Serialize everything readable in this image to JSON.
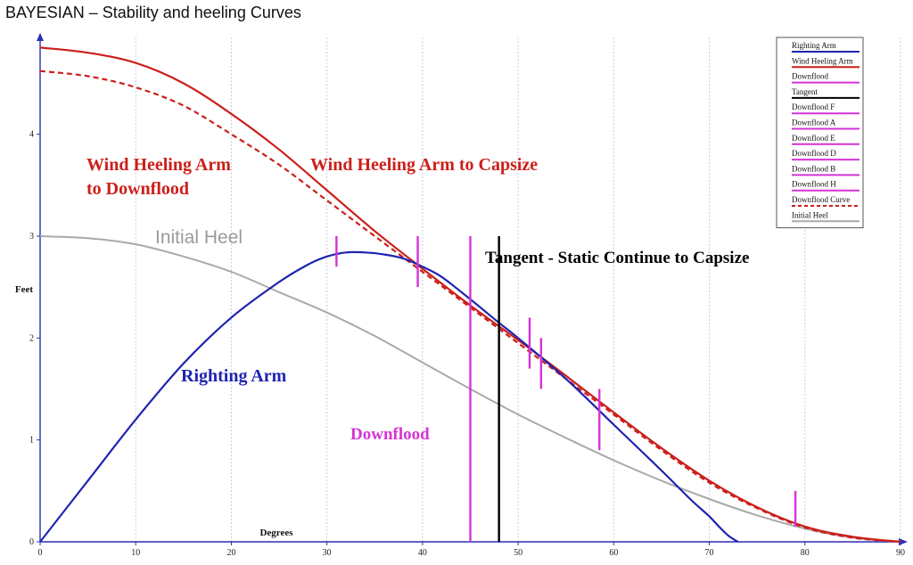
{
  "page": {
    "title": "BAYESIAN – Stability and heeling Curves"
  },
  "chart_data": {
    "type": "line",
    "title": "BAYESIAN – Stability and heeling Curves",
    "xlabel": "Degrees",
    "ylabel": "Feet",
    "xlim": [
      0,
      90
    ],
    "ylim": [
      0,
      5
    ],
    "x_ticks": [
      0,
      10,
      20,
      30,
      40,
      50,
      60,
      70,
      80,
      90
    ],
    "y_ticks": [
      0,
      1,
      2,
      3,
      4
    ],
    "grid": true,
    "legend_position": "top-right",
    "series": [
      {
        "name": "Righting Arm",
        "color": "#1f24b0",
        "style": "solid",
        "x": [
          0,
          5,
          10,
          15,
          20,
          25,
          28,
          30,
          32,
          34,
          36,
          38,
          40,
          42,
          45,
          48,
          50,
          55,
          60,
          65,
          68,
          70,
          71,
          72,
          73
        ],
        "y": [
          0,
          0.6,
          1.2,
          1.75,
          2.2,
          2.55,
          2.72,
          2.8,
          2.84,
          2.84,
          2.82,
          2.78,
          2.7,
          2.6,
          2.38,
          2.15,
          2.0,
          1.6,
          1.15,
          0.7,
          0.42,
          0.25,
          0.15,
          0.06,
          0
        ]
      },
      {
        "name": "Wind Heeling Arm",
        "color": "#cc1f1a",
        "style": "solid",
        "x": [
          0,
          5,
          10,
          15,
          20,
          25,
          30,
          35,
          40,
          45,
          50,
          55,
          60,
          65,
          70,
          75,
          80,
          85,
          90
        ],
        "y": [
          4.85,
          4.8,
          4.7,
          4.5,
          4.2,
          3.85,
          3.45,
          3.05,
          2.68,
          2.32,
          1.98,
          1.63,
          1.27,
          0.92,
          0.6,
          0.34,
          0.15,
          0.05,
          0
        ]
      },
      {
        "name": "Downflood Curve",
        "color": "#cc1f1a",
        "style": "dashed",
        "x": [
          0,
          5,
          10,
          15,
          20,
          25,
          30,
          35,
          40,
          45,
          50,
          55,
          60,
          65,
          70,
          75,
          80,
          85,
          90
        ],
        "y": [
          4.62,
          4.57,
          4.46,
          4.28,
          4.0,
          3.7,
          3.35,
          3.0,
          2.65,
          2.3,
          1.95,
          1.6,
          1.25,
          0.9,
          0.58,
          0.33,
          0.14,
          0.04,
          0
        ]
      },
      {
        "name": "Initial Heel",
        "color": "#a9a9a9",
        "style": "solid",
        "x": [
          0,
          5,
          10,
          15,
          20,
          25,
          30,
          35,
          40,
          45,
          50,
          55,
          60,
          65,
          70,
          75,
          80,
          85,
          90
        ],
        "y": [
          3.0,
          2.98,
          2.92,
          2.8,
          2.65,
          2.45,
          2.25,
          2.02,
          1.76,
          1.5,
          1.25,
          1.02,
          0.8,
          0.6,
          0.42,
          0.26,
          0.13,
          0.04,
          0
        ]
      }
    ],
    "vertical_markers": [
      {
        "name": "Downflood",
        "color": "#d633d6",
        "x": 31.0,
        "y_min": 2.7,
        "y_max": 3.0
      },
      {
        "name": "Downflood",
        "color": "#d633d6",
        "x": 39.5,
        "y_min": 2.5,
        "y_max": 3.0
      },
      {
        "name": "Downflood",
        "color": "#d633d6",
        "x": 45.0,
        "y_min": 0,
        "y_max": 3.0
      },
      {
        "name": "Downflood",
        "color": "#d633d6",
        "x": 51.2,
        "y_min": 1.7,
        "y_max": 2.2
      },
      {
        "name": "Downflood",
        "color": "#d633d6",
        "x": 52.4,
        "y_min": 1.5,
        "y_max": 2.0
      },
      {
        "name": "Downflood",
        "color": "#d633d6",
        "x": 58.5,
        "y_min": 0.9,
        "y_max": 1.5
      },
      {
        "name": "Downflood",
        "color": "#d633d6",
        "x": 79.0,
        "y_min": 0.15,
        "y_max": 0.5
      },
      {
        "name": "Tangent",
        "color": "#000000",
        "x": 48.0,
        "y_min": 0,
        "y_max": 3.0
      }
    ],
    "annotations": [
      {
        "text": "Wind Heeling Arm",
        "color": "#cc1f1a"
      },
      {
        "text": "to Downflood",
        "color": "#cc1f1a"
      },
      {
        "text": "Wind Heeling Arm to Capsize",
        "color": "#cc1f1a"
      },
      {
        "text": "Initial Heel",
        "color": "#9a9a9a"
      },
      {
        "text": "Tangent - Static Continue to Capsize",
        "color": "#000000"
      },
      {
        "text": "Righting Arm",
        "color": "#1f24b0"
      },
      {
        "text": "Downflood",
        "color": "#d633d6"
      }
    ],
    "legend": [
      {
        "label": "Righting Arm",
        "color": "#1f24b0",
        "style": "solid"
      },
      {
        "label": "Wind Heeling Arm",
        "color": "#cc1f1a",
        "style": "solid"
      },
      {
        "label": "Downflood",
        "color": "#d633d6",
        "style": "solid"
      },
      {
        "label": "Tangent",
        "color": "#000000",
        "style": "solid"
      },
      {
        "label": "Downflood F",
        "color": "#d633d6",
        "style": "solid"
      },
      {
        "label": "Downflood A",
        "color": "#d633d6",
        "style": "solid"
      },
      {
        "label": "Downflood E",
        "color": "#d633d6",
        "style": "solid"
      },
      {
        "label": "Downflood D",
        "color": "#d633d6",
        "style": "solid"
      },
      {
        "label": "Downflood B",
        "color": "#d633d6",
        "style": "solid"
      },
      {
        "label": "Downflood H",
        "color": "#d633d6",
        "style": "solid"
      },
      {
        "label": "Downflood Curve",
        "color": "#cc1f1a",
        "style": "dashed"
      },
      {
        "label": "Initial Heel",
        "color": "#a9a9a9",
        "style": "solid"
      }
    ]
  }
}
